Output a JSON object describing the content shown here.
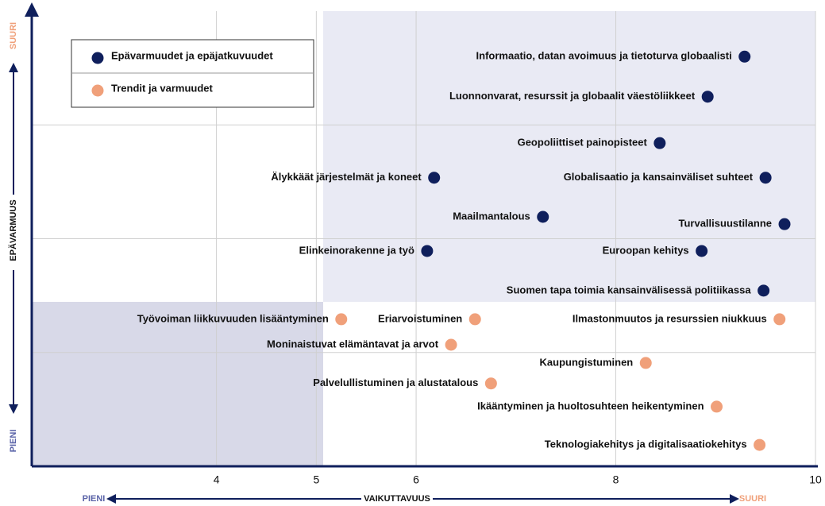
{
  "chart_data": {
    "type": "scatter",
    "x_label": "VAIKUTTAVUUS",
    "x_low": "PIENI",
    "x_high": "SUURI",
    "y_label": "EPÄVARMUUS",
    "y_low": "PIENI",
    "y_high": "SUURI",
    "xlim": [
      2.15,
      10
    ],
    "xticks": [
      4,
      5,
      6,
      8,
      10
    ],
    "ylim": [
      0,
      10
    ],
    "yticks": [
      2.5,
      5,
      7.5
    ],
    "grid": true,
    "legend": "upper left",
    "series": [
      {
        "name": "Epävarmuudet ja epäjatkuvuudet",
        "color": "#0f1f5c",
        "x": [
          9.29,
          8.92,
          8.44,
          6.18,
          9.5,
          7.27,
          9.69,
          6.11,
          8.86,
          9.48
        ],
        "y": [
          9.0,
          8.12,
          7.1,
          6.34,
          6.34,
          5.48,
          5.32,
          4.73,
          4.73,
          3.86
        ],
        "labels": [
          "Informaatio, datan avoimuus ja tietoturva globaalisti",
          "Luonnonvarat, resurssit ja globaalit väestöliikkeet",
          "Geopoliittiset painopisteet",
          "Älykkäät järjestelmät ja koneet",
          "Globalisaatio ja kansainväliset suhteet",
          "Maailmantalous",
          "Turvallisuustilanne",
          "Elinkeinorakenne ja työ",
          "Euroopan kehitys",
          "Suomen tapa toimia kansainvälisessä politiikassa"
        ]
      },
      {
        "name": "Trendit ja varmuudet",
        "color": "#f0a07a",
        "x": [
          5.25,
          6.59,
          9.64,
          6.35,
          8.3,
          6.75,
          9.01,
          9.44
        ],
        "y": [
          3.23,
          3.23,
          3.23,
          2.67,
          2.27,
          1.82,
          1.31,
          0.47
        ],
        "labels": [
          "Työvoiman liikkuvuuden lisääntyminen",
          "Eriarvoistuminen",
          "Ilmastonmuutos ja resurssien niukkuus",
          "Moninaistuvat elämäntavat ja arvot",
          "Kaupungistuminen",
          "Palvelullistuminen ja alustatalous",
          "Ikääntyminen ja huoltosuhteen heikentyminen",
          "Teknologiakehitys ja digitalisaatiokehitys"
        ]
      }
    ]
  }
}
